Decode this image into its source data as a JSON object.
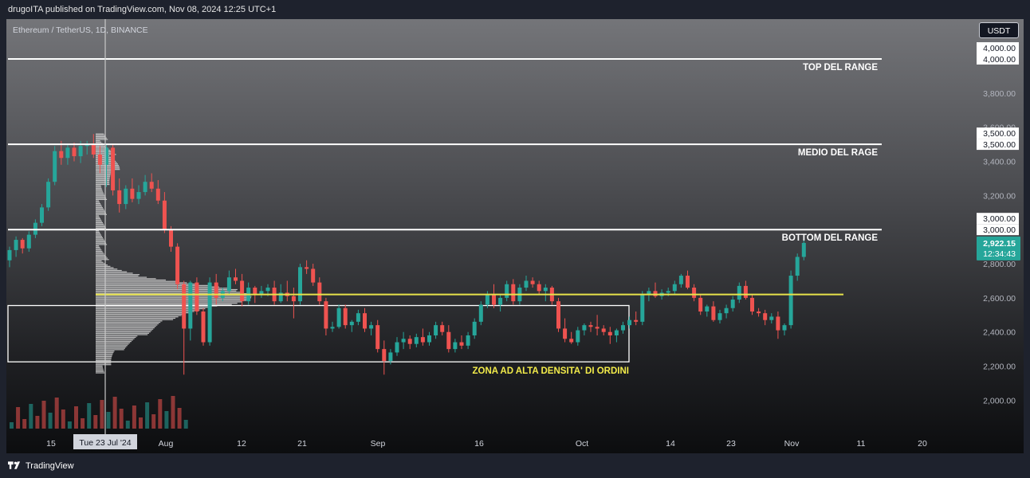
{
  "header": {
    "published_text": "drugoITA published on TradingView.com, Nov 08, 2024 12:25 UTC+1"
  },
  "symbol": {
    "title": "Ethereum / TetherUS, 1D, BINANCE"
  },
  "currency_button": "USDT",
  "crosshair": {
    "date_label": "Tue 23 Jul '24"
  },
  "price_axis": {
    "ticks": [
      "4,000.00",
      "3,800.00",
      "3,600.00",
      "3,400.00",
      "3,200.00",
      "2,800.00",
      "2,600.00",
      "2,400.00",
      "2,200.00",
      "2,000.00"
    ],
    "line_tags": [
      "4,000.00",
      "3,500.00",
      "3,000.00"
    ],
    "last_price": "2,922.15",
    "countdown": "12:34:43"
  },
  "time_axis": {
    "ticks": [
      "15",
      "Aug",
      "12",
      "21",
      "Sep",
      "16",
      "Oct",
      "14",
      "23",
      "Nov",
      "11",
      "20"
    ]
  },
  "annotations": {
    "top_range": "TOP DEL RANGE",
    "mid_range": "MEDIO DEL RAGE",
    "bottom_range": "BOTTOM DEL RANGE",
    "zone_label": "ZONA AD ALTA DENSITA' DI ORDINI"
  },
  "footer": {
    "brand": "TradingView"
  },
  "colors": {
    "up": "#26a69a",
    "down": "#ef5350",
    "level_line": "#ffffff",
    "poc_line": "#e6e24a",
    "zone_label": "#f2eb4a",
    "price_tag": "#26a69a"
  },
  "chart_data": {
    "type": "candlestick",
    "title": "Ethereum / TetherUS, 1D, BINANCE",
    "y_scale": "linear",
    "ylim": [
      1800,
      4300
    ],
    "price_ticks": [
      4000,
      3800,
      3600,
      3400,
      3200,
      3000,
      2800,
      2600,
      2400,
      2200,
      2000
    ],
    "horizontal_levels": [
      {
        "label": "TOP DEL RANGE",
        "price": 4000
      },
      {
        "label": "MEDIO DEL RAGE",
        "price": 3500
      },
      {
        "label": "BOTTOM DEL RANGE",
        "price": 3000
      }
    ],
    "high_volume_line": 2620,
    "zone": {
      "label": "ZONA AD ALTA DENSITA' DI ORDINI",
      "from": 2225,
      "to": 2555
    },
    "last_price": 2922.15,
    "x_start": "2024-07-09",
    "grid": false,
    "candles": [
      [
        2820,
        2900,
        2780,
        2880
      ],
      [
        2880,
        2960,
        2840,
        2940
      ],
      [
        2940,
        2950,
        2860,
        2890
      ],
      [
        2890,
        2990,
        2870,
        2970
      ],
      [
        2970,
        3060,
        2950,
        3040
      ],
      [
        3040,
        3150,
        3020,
        3130
      ],
      [
        3130,
        3300,
        3110,
        3280
      ],
      [
        3280,
        3490,
        3260,
        3460
      ],
      [
        3460,
        3520,
        3380,
        3420
      ],
      [
        3420,
        3500,
        3380,
        3480
      ],
      [
        3480,
        3510,
        3400,
        3430
      ],
      [
        3430,
        3520,
        3390,
        3490
      ],
      [
        3490,
        3520,
        3440,
        3500
      ],
      [
        3500,
        3560,
        3420,
        3440
      ],
      [
        3440,
        3490,
        3330,
        3380
      ],
      [
        3380,
        3500,
        3250,
        3480
      ],
      [
        3480,
        3500,
        3200,
        3230
      ],
      [
        3230,
        3300,
        3100,
        3150
      ],
      [
        3150,
        3260,
        3120,
        3240
      ],
      [
        3240,
        3300,
        3160,
        3180
      ],
      [
        3180,
        3260,
        3150,
        3220
      ],
      [
        3220,
        3320,
        3200,
        3280
      ],
      [
        3280,
        3330,
        3220,
        3240
      ],
      [
        3240,
        3290,
        3150,
        3170
      ],
      [
        3170,
        3220,
        2980,
        3000
      ],
      [
        3000,
        3020,
        2870,
        2900
      ],
      [
        2900,
        2920,
        2650,
        2680
      ],
      [
        2680,
        2700,
        2150,
        2420
      ],
      [
        2420,
        2700,
        2350,
        2690
      ],
      [
        2690,
        2720,
        2500,
        2520
      ],
      [
        2520,
        2540,
        2320,
        2340
      ],
      [
        2340,
        2720,
        2320,
        2690
      ],
      [
        2690,
        2740,
        2560,
        2600
      ],
      [
        2600,
        2660,
        2580,
        2640
      ],
      [
        2640,
        2760,
        2620,
        2720
      ],
      [
        2720,
        2770,
        2680,
        2700
      ],
      [
        2700,
        2740,
        2550,
        2580
      ],
      [
        2580,
        2690,
        2560,
        2660
      ],
      [
        2660,
        2670,
        2570,
        2620
      ],
      [
        2620,
        2670,
        2600,
        2640
      ],
      [
        2640,
        2680,
        2610,
        2660
      ],
      [
        2660,
        2700,
        2560,
        2580
      ],
      [
        2580,
        2680,
        2570,
        2630
      ],
      [
        2630,
        2700,
        2580,
        2610
      ],
      [
        2610,
        2660,
        2480,
        2580
      ],
      [
        2580,
        2800,
        2560,
        2780
      ],
      [
        2780,
        2820,
        2740,
        2770
      ],
      [
        2770,
        2800,
        2670,
        2690
      ],
      [
        2690,
        2720,
        2560,
        2580
      ],
      [
        2580,
        2600,
        2380,
        2420
      ],
      [
        2420,
        2460,
        2400,
        2430
      ],
      [
        2430,
        2560,
        2420,
        2540
      ],
      [
        2540,
        2560,
        2420,
        2440
      ],
      [
        2440,
        2470,
        2400,
        2460
      ],
      [
        2460,
        2530,
        2440,
        2510
      ],
      [
        2510,
        2540,
        2400,
        2420
      ],
      [
        2420,
        2460,
        2380,
        2440
      ],
      [
        2440,
        2470,
        2280,
        2300
      ],
      [
        2300,
        2350,
        2150,
        2230
      ],
      [
        2230,
        2300,
        2210,
        2280
      ],
      [
        2280,
        2370,
        2260,
        2340
      ],
      [
        2340,
        2400,
        2300,
        2360
      ],
      [
        2360,
        2380,
        2300,
        2330
      ],
      [
        2330,
        2390,
        2310,
        2370
      ],
      [
        2370,
        2420,
        2320,
        2340
      ],
      [
        2340,
        2400,
        2320,
        2380
      ],
      [
        2380,
        2460,
        2360,
        2440
      ],
      [
        2440,
        2460,
        2380,
        2400
      ],
      [
        2400,
        2440,
        2280,
        2300
      ],
      [
        2300,
        2360,
        2280,
        2340
      ],
      [
        2340,
        2380,
        2300,
        2320
      ],
      [
        2320,
        2400,
        2300,
        2380
      ],
      [
        2380,
        2480,
        2360,
        2460
      ],
      [
        2460,
        2580,
        2440,
        2560
      ],
      [
        2560,
        2640,
        2540,
        2620
      ],
      [
        2620,
        2680,
        2540,
        2560
      ],
      [
        2560,
        2620,
        2520,
        2600
      ],
      [
        2600,
        2700,
        2580,
        2680
      ],
      [
        2680,
        2710,
        2560,
        2580
      ],
      [
        2580,
        2680,
        2560,
        2660
      ],
      [
        2660,
        2730,
        2640,
        2700
      ],
      [
        2700,
        2720,
        2660,
        2680
      ],
      [
        2680,
        2700,
        2620,
        2640
      ],
      [
        2640,
        2680,
        2580,
        2660
      ],
      [
        2660,
        2670,
        2560,
        2580
      ],
      [
        2580,
        2600,
        2400,
        2420
      ],
      [
        2420,
        2480,
        2340,
        2360
      ],
      [
        2360,
        2400,
        2330,
        2340
      ],
      [
        2340,
        2430,
        2320,
        2410
      ],
      [
        2410,
        2450,
        2380,
        2440
      ],
      [
        2440,
        2460,
        2400,
        2430
      ],
      [
        2430,
        2500,
        2380,
        2420
      ],
      [
        2420,
        2440,
        2380,
        2400
      ],
      [
        2400,
        2430,
        2330,
        2380
      ],
      [
        2380,
        2420,
        2340,
        2410
      ],
      [
        2410,
        2460,
        2390,
        2440
      ],
      [
        2440,
        2490,
        2420,
        2470
      ],
      [
        2470,
        2520,
        2440,
        2460
      ],
      [
        2460,
        2640,
        2440,
        2620
      ],
      [
        2620,
        2660,
        2580,
        2640
      ],
      [
        2640,
        2690,
        2600,
        2610
      ],
      [
        2610,
        2650,
        2590,
        2630
      ],
      [
        2630,
        2660,
        2610,
        2640
      ],
      [
        2640,
        2700,
        2620,
        2680
      ],
      [
        2680,
        2740,
        2660,
        2730
      ],
      [
        2730,
        2760,
        2650,
        2660
      ],
      [
        2660,
        2680,
        2580,
        2600
      ],
      [
        2600,
        2620,
        2500,
        2520
      ],
      [
        2520,
        2560,
        2490,
        2550
      ],
      [
        2550,
        2580,
        2460,
        2470
      ],
      [
        2470,
        2530,
        2450,
        2510
      ],
      [
        2510,
        2560,
        2480,
        2540
      ],
      [
        2540,
        2610,
        2520,
        2590
      ],
      [
        2590,
        2690,
        2570,
        2670
      ],
      [
        2670,
        2700,
        2590,
        2600
      ],
      [
        2600,
        2620,
        2500,
        2520
      ],
      [
        2520,
        2540,
        2490,
        2510
      ],
      [
        2510,
        2530,
        2440,
        2470
      ],
      [
        2470,
        2510,
        2450,
        2490
      ],
      [
        2490,
        2520,
        2360,
        2410
      ],
      [
        2410,
        2450,
        2380,
        2440
      ],
      [
        2440,
        2760,
        2420,
        2730
      ],
      [
        2730,
        2860,
        2700,
        2840
      ],
      [
        2840,
        2960,
        2820,
        2922
      ]
    ]
  }
}
